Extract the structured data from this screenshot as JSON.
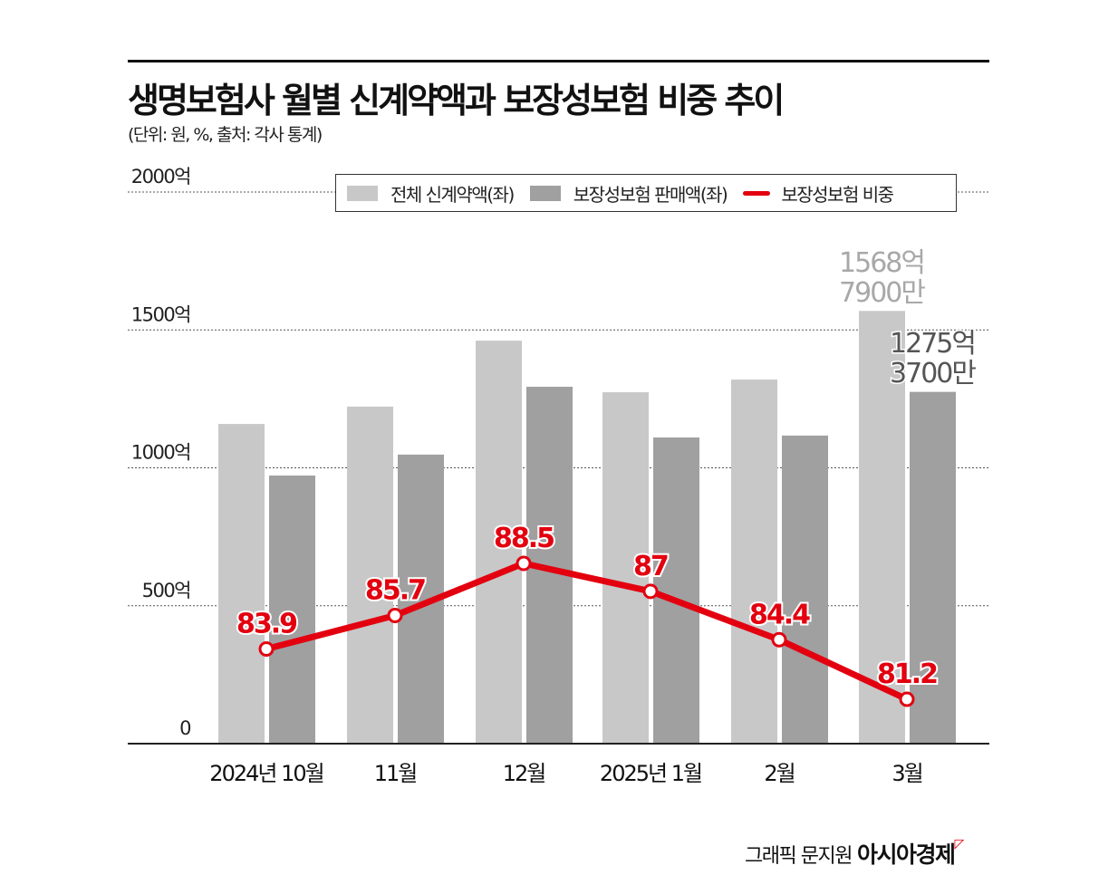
{
  "title": "생명보험사 월별 신계약액과 보장성보험 비중 추이",
  "subtitle": "(단위: 원, %, 출처: 각사 통계)",
  "footer": {
    "credit": "그래픽 문지원",
    "brand": "아시아경제"
  },
  "colors": {
    "total": "#c8c8c8",
    "protection": "#a0a0a0",
    "ratio": "#e3000f"
  },
  "chart_data": {
    "type": "bar+line",
    "categories": [
      "2024년 10월",
      "11월",
      "12월",
      "2025년 1월",
      "2월",
      "3월"
    ],
    "y_ticks": [
      "0",
      "500억",
      "1000억",
      "1500억",
      "2000억"
    ],
    "ylim": [
      0,
      2000
    ],
    "grid": true,
    "legend_placement": "top",
    "series": [
      {
        "name": "전체 신계약액(좌)",
        "type": "bar",
        "unit": "억원",
        "values": [
          1159,
          1222,
          1461,
          1274,
          1320,
          1568.79
        ]
      },
      {
        "name": "보장성보험 판매액(좌)",
        "type": "bar",
        "unit": "억원",
        "values": [
          972,
          1048,
          1294,
          1110,
          1117,
          1275.37
        ]
      },
      {
        "name": "보장성보험 비중",
        "type": "line",
        "unit": "%",
        "values": [
          83.9,
          85.7,
          88.5,
          87,
          84.4,
          81.2
        ],
        "labels": [
          "83.9",
          "85.7",
          "88.5",
          "87",
          "84.4",
          "81.2"
        ]
      }
    ],
    "annotations": [
      {
        "series": 0,
        "index": 5,
        "lines": [
          "1568억",
          "7900만"
        ]
      },
      {
        "series": 1,
        "index": 5,
        "lines": [
          "1275억",
          "3700만"
        ]
      }
    ]
  }
}
